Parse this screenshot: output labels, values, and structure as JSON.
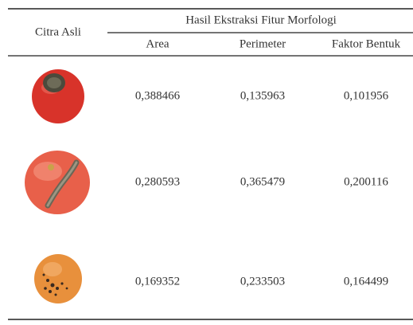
{
  "table": {
    "header": {
      "image": "Citra Asli",
      "group": "Hasil Ekstraksi Fitur Morfologi",
      "columns": [
        "Area",
        "Perimeter",
        "Faktor Bentuk"
      ]
    },
    "rows": [
      [
        "0,388466",
        "0,135963",
        "0,101956"
      ],
      [
        "0,280593",
        "0,365479",
        "0,200116"
      ],
      [
        "0,169352",
        "0,233503",
        "0,164499"
      ]
    ]
  }
}
